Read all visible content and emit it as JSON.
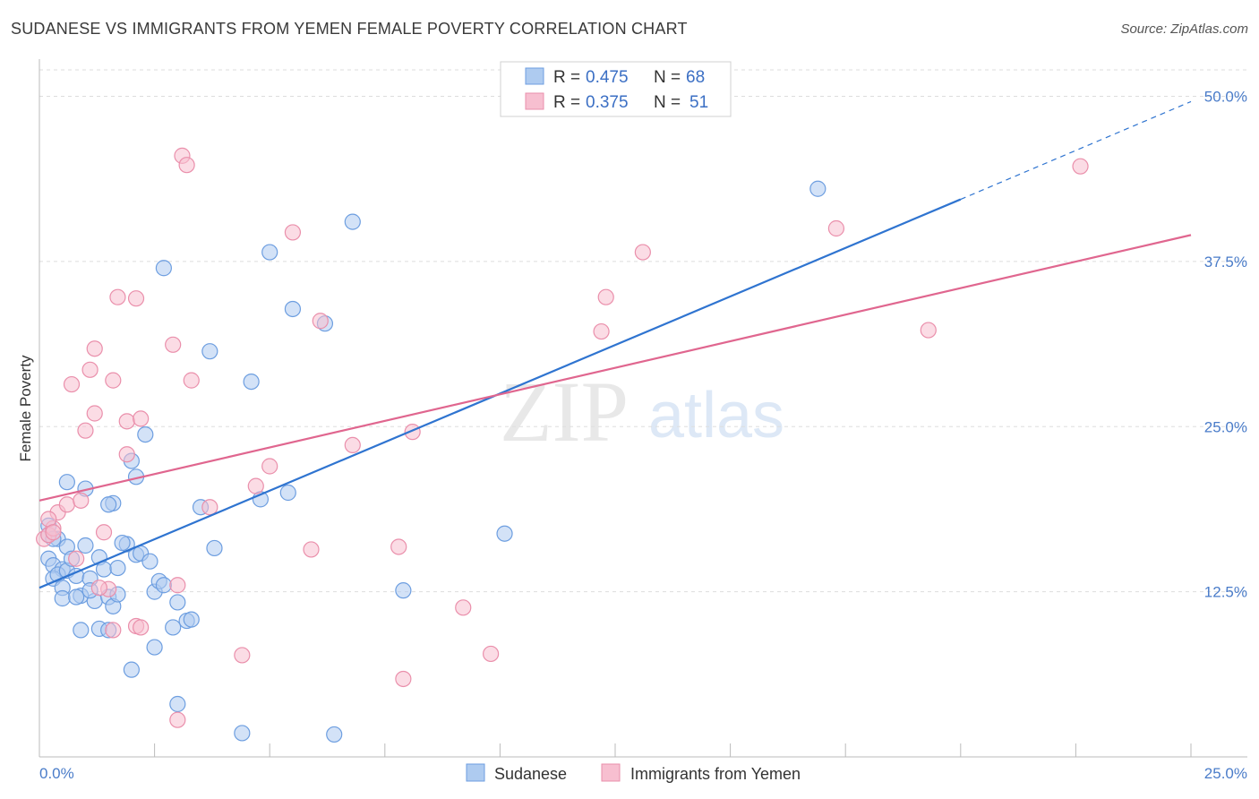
{
  "title": "SUDANESE VS IMMIGRANTS FROM YEMEN FEMALE POVERTY CORRELATION CHART",
  "source": "Source: ZipAtlas.com",
  "watermark": {
    "zip": "ZIP",
    "atlas": "atlas"
  },
  "legend": {
    "sudanese": {
      "r_label": "R =",
      "r_value": "0.475",
      "n_label": "N =",
      "n_value": "68"
    },
    "yemen": {
      "r_label": "R =",
      "r_value": "0.375",
      "n_label": "N =",
      "n_value": "51"
    }
  },
  "bottom_legend": {
    "sudanese": "Sudanese",
    "yemen": "Immigrants from Yemen"
  },
  "colors": {
    "sudanese_fill": "#aecbf0",
    "sudanese_stroke": "#6d9ee0",
    "sudanese_line": "#2f74d0",
    "yemen_fill": "#f7bfd0",
    "yemen_stroke": "#ea8fab",
    "yemen_line": "#e0668f",
    "tick_label": "#4a7cc9",
    "grid": "#dddddd"
  },
  "chart_data": {
    "type": "scatter",
    "ylabel": "Female Poverty",
    "xlim": [
      0,
      25
    ],
    "ylim": [
      0,
      52
    ],
    "y_ticks": [
      {
        "value": 12.5,
        "label": "12.5%"
      },
      {
        "value": 25.0,
        "label": "25.0%"
      },
      {
        "value": 37.5,
        "label": "37.5%"
      },
      {
        "value": 50.0,
        "label": "50.0%"
      }
    ],
    "x_tick_labels": {
      "min": "0.0%",
      "max": "25.0%"
    },
    "grid": true,
    "series": [
      {
        "name": "Sudanese",
        "trend": {
          "x0": 0.0,
          "y0": 12.8,
          "x1": 20.0,
          "y1": 42.2,
          "dashed_to_x": 25.0,
          "dashed_to_y": 49.6
        },
        "points": [
          [
            0.4,
            16.5
          ],
          [
            0.2,
            15.0
          ],
          [
            0.3,
            14.5
          ],
          [
            0.5,
            14.2
          ],
          [
            0.3,
            13.5
          ],
          [
            0.2,
            17.5
          ],
          [
            0.4,
            13.8
          ],
          [
            0.6,
            14.1
          ],
          [
            0.6,
            15.9
          ],
          [
            0.5,
            12.8
          ],
          [
            0.7,
            15.0
          ],
          [
            0.8,
            13.7
          ],
          [
            0.9,
            12.2
          ],
          [
            0.5,
            12.0
          ],
          [
            0.8,
            12.1
          ],
          [
            1.0,
            16.0
          ],
          [
            1.1,
            13.5
          ],
          [
            1.2,
            11.8
          ],
          [
            1.3,
            15.1
          ],
          [
            1.4,
            14.2
          ],
          [
            1.5,
            12.1
          ],
          [
            1.6,
            11.4
          ],
          [
            1.7,
            14.3
          ],
          [
            1.6,
            19.2
          ],
          [
            1.5,
            19.1
          ],
          [
            1.9,
            16.1
          ],
          [
            2.1,
            15.3
          ],
          [
            2.1,
            21.2
          ],
          [
            2.0,
            22.4
          ],
          [
            2.3,
            24.4
          ],
          [
            2.2,
            15.4
          ],
          [
            2.4,
            14.8
          ],
          [
            2.5,
            12.5
          ],
          [
            2.6,
            13.3
          ],
          [
            2.7,
            13.0
          ],
          [
            1.3,
            9.7
          ],
          [
            1.5,
            9.6
          ],
          [
            2.5,
            8.3
          ],
          [
            0.9,
            9.6
          ],
          [
            2.0,
            6.6
          ],
          [
            3.0,
            11.7
          ],
          [
            3.2,
            10.3
          ],
          [
            3.3,
            10.4
          ],
          [
            2.9,
            9.8
          ],
          [
            3.0,
            4.0
          ],
          [
            0.6,
            20.8
          ],
          [
            1.0,
            20.3
          ],
          [
            1.8,
            16.2
          ],
          [
            3.5,
            18.9
          ],
          [
            3.7,
            30.7
          ],
          [
            3.8,
            15.8
          ],
          [
            4.6,
            28.4
          ],
          [
            4.8,
            19.5
          ],
          [
            5.0,
            38.2
          ],
          [
            5.4,
            20.0
          ],
          [
            5.5,
            33.9
          ],
          [
            6.2,
            32.8
          ],
          [
            6.8,
            40.5
          ],
          [
            4.4,
            1.8
          ],
          [
            6.4,
            1.7
          ],
          [
            7.9,
            12.6
          ],
          [
            10.1,
            16.9
          ],
          [
            16.9,
            43.0
          ],
          [
            2.7,
            37.0
          ],
          [
            0.2,
            16.8
          ],
          [
            0.3,
            16.5
          ],
          [
            1.1,
            12.6
          ],
          [
            1.7,
            12.3
          ]
        ]
      },
      {
        "name": "Immigrants from Yemen",
        "trend": {
          "x0": 0.0,
          "y0": 19.4,
          "x1": 25.0,
          "y1": 39.5
        },
        "points": [
          [
            0.1,
            16.5
          ],
          [
            0.2,
            16.8
          ],
          [
            0.3,
            17.3
          ],
          [
            0.4,
            18.5
          ],
          [
            0.2,
            18.0
          ],
          [
            0.6,
            19.1
          ],
          [
            0.3,
            17.0
          ],
          [
            0.8,
            15.0
          ],
          [
            0.9,
            19.4
          ],
          [
            1.0,
            24.7
          ],
          [
            1.1,
            29.3
          ],
          [
            1.2,
            30.9
          ],
          [
            1.2,
            26.0
          ],
          [
            1.4,
            17.0
          ],
          [
            1.5,
            12.7
          ],
          [
            1.6,
            9.6
          ],
          [
            1.6,
            28.5
          ],
          [
            1.7,
            34.8
          ],
          [
            1.9,
            22.9
          ],
          [
            1.9,
            25.4
          ],
          [
            2.1,
            34.7
          ],
          [
            2.2,
            25.6
          ],
          [
            2.1,
            9.9
          ],
          [
            2.2,
            9.8
          ],
          [
            2.9,
            31.2
          ],
          [
            3.0,
            13.0
          ],
          [
            3.1,
            45.5
          ],
          [
            3.2,
            44.8
          ],
          [
            3.3,
            28.5
          ],
          [
            3.7,
            18.9
          ],
          [
            4.4,
            7.7
          ],
          [
            4.7,
            20.5
          ],
          [
            5.0,
            22.0
          ],
          [
            5.5,
            39.7
          ],
          [
            5.9,
            15.7
          ],
          [
            6.1,
            33.0
          ],
          [
            6.8,
            23.6
          ],
          [
            7.8,
            15.9
          ],
          [
            7.9,
            5.9
          ],
          [
            8.1,
            24.6
          ],
          [
            9.2,
            11.3
          ],
          [
            9.8,
            7.8
          ],
          [
            12.2,
            32.2
          ],
          [
            12.3,
            34.8
          ],
          [
            13.1,
            38.2
          ],
          [
            17.3,
            40.0
          ],
          [
            19.3,
            32.3
          ],
          [
            22.6,
            44.7
          ],
          [
            0.7,
            28.2
          ],
          [
            3.0,
            2.8
          ],
          [
            1.3,
            12.8
          ]
        ]
      }
    ]
  }
}
